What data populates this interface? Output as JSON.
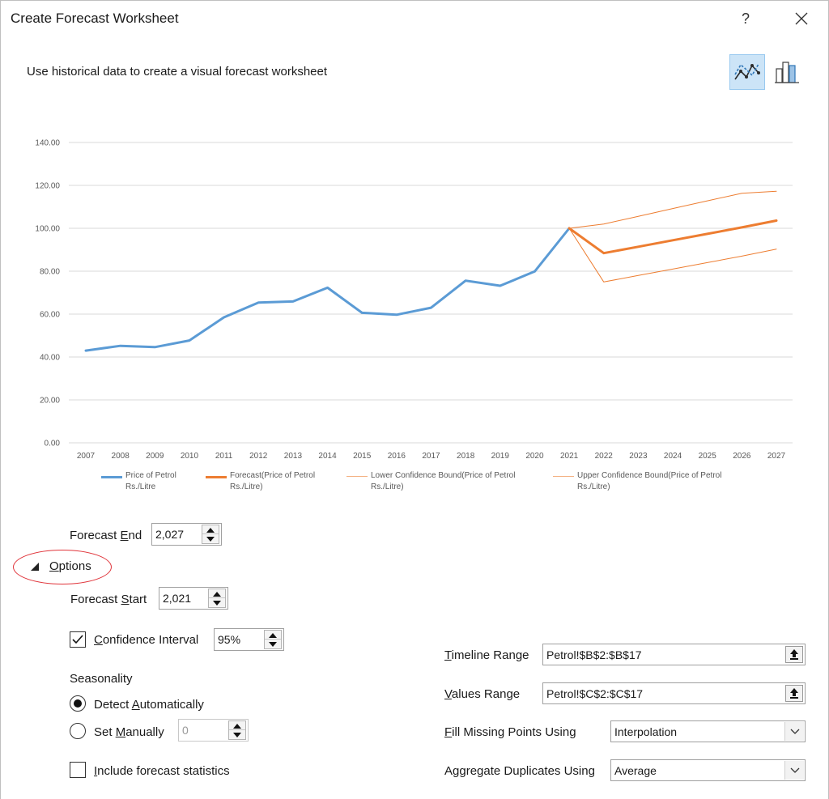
{
  "dialog": {
    "title": "Create Forecast Worksheet",
    "help_label": "?",
    "subtitle": "Use historical data to create a visual forecast worksheet",
    "close_icon": "close-icon",
    "chart_type_buttons": [
      {
        "name": "line-chart-icon",
        "selected": true
      },
      {
        "name": "column-chart-icon",
        "selected": false
      }
    ]
  },
  "chart_data": {
    "type": "line",
    "title": "",
    "xlabel": "",
    "ylabel": "",
    "ylim": [
      0,
      140
    ],
    "y_ticks": [
      "0.00",
      "20.00",
      "40.00",
      "60.00",
      "80.00",
      "100.00",
      "120.00",
      "140.00"
    ],
    "x": [
      2007,
      2008,
      2009,
      2010,
      2011,
      2012,
      2013,
      2014,
      2015,
      2016,
      2017,
      2018,
      2019,
      2020,
      2021,
      2022,
      2023,
      2024,
      2025,
      2026,
      2027
    ],
    "grid": true,
    "legend_position": "bottom",
    "series": [
      {
        "name": "Price of Petrol Rs./Litre",
        "color": "#5b9bd5",
        "width": 3,
        "values": [
          43.0,
          45.2,
          44.6,
          47.7,
          58.5,
          65.4,
          65.9,
          72.3,
          60.6,
          59.7,
          63.0,
          75.6,
          73.2,
          79.9,
          100.0,
          null,
          null,
          null,
          null,
          null,
          null
        ]
      },
      {
        "name": "Forecast(Price of Petrol Rs./Litre)",
        "color": "#ed7d31",
        "width": 3,
        "values": [
          null,
          null,
          null,
          null,
          null,
          null,
          null,
          null,
          null,
          null,
          null,
          null,
          null,
          null,
          100.0,
          88.4,
          91.4,
          94.4,
          97.4,
          100.4,
          103.6
        ]
      },
      {
        "name": "Lower Confidence Bound(Price of Petrol Rs./Litre)",
        "color": "#ed7d31",
        "width": 1,
        "values": [
          null,
          null,
          null,
          null,
          null,
          null,
          null,
          null,
          null,
          null,
          null,
          null,
          null,
          null,
          100.0,
          75.0,
          78.0,
          81.0,
          84.0,
          87.0,
          90.3
        ]
      },
      {
        "name": "Upper Confidence Bound(Price of Petrol Rs./Litre)",
        "color": "#ed7d31",
        "width": 1,
        "values": [
          null,
          null,
          null,
          null,
          null,
          null,
          null,
          null,
          null,
          null,
          null,
          null,
          null,
          null,
          100.0,
          102.0,
          105.6,
          109.2,
          112.8,
          116.3,
          117.3
        ]
      }
    ]
  },
  "legend": {
    "items": [
      {
        "line1": "Price of Petrol",
        "line2": "Rs./Litre",
        "color": "#5b9bd5",
        "weight": 3
      },
      {
        "line1": "Forecast(Price of Petrol",
        "line2": "Rs./Litre)",
        "color": "#ed7d31",
        "weight": 3
      },
      {
        "line1": "Lower Confidence Bound(Price of Petrol",
        "line2": "Rs./Litre)",
        "color": "#f4b183",
        "weight": 1
      },
      {
        "line1": "Upper Confidence Bound(Price of Petrol",
        "line2": "Rs./Litre)",
        "color": "#f4b183",
        "weight": 1
      }
    ]
  },
  "forecast_end": {
    "label_pre": "Forecast ",
    "label_u": "E",
    "label_post": "nd",
    "value": "2,027"
  },
  "options": {
    "label_u": "O",
    "label_post": "ptions"
  },
  "forecast_start": {
    "label_pre": "Forecast ",
    "label_u": "S",
    "label_post": "tart",
    "value": "2,021"
  },
  "confidence": {
    "checked": true,
    "label_u": "C",
    "label_post": "onfidence Interval",
    "value": "95%"
  },
  "seasonality": {
    "heading": "Seasonality",
    "detect": {
      "label_pre": "Detect ",
      "label_u": "A",
      "label_post": "utomatically",
      "selected": true
    },
    "manual": {
      "label_pre": "Set ",
      "label_u": "M",
      "label_post": "anually",
      "value": "0",
      "selected": false
    }
  },
  "include_stats": {
    "checked": false,
    "label_u": "I",
    "label_post": "nclude forecast statistics"
  },
  "timeline_range": {
    "label_u": "T",
    "label_post": "imeline Range",
    "value": "Petrol!$B$2:$B$17"
  },
  "values_range": {
    "label_u": "V",
    "label_post": "alues Range",
    "value": "Petrol!$C$2:$C$17"
  },
  "fill_missing": {
    "label_u": "F",
    "label_post": "ill Missing Points Using",
    "value": "Interpolation"
  },
  "aggregate": {
    "label_pre": "A",
    "label_u": "g",
    "label_post": "gregate Duplicates Using",
    "value": "Average"
  }
}
